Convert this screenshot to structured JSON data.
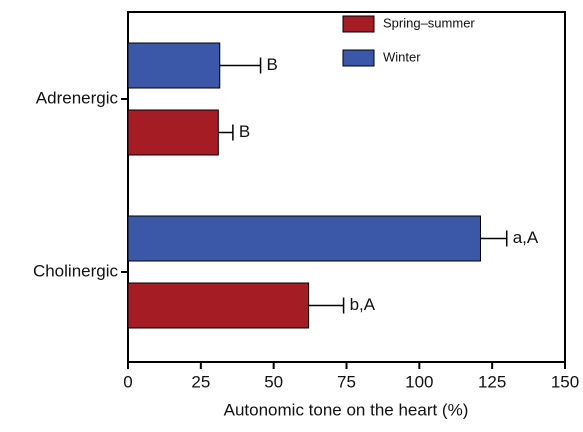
{
  "chart_data": {
    "type": "hbar",
    "xlabel": "Autonomic tone on the heart (%)",
    "categories": [
      "Adrenergic",
      "Cholinergic"
    ],
    "series": [
      {
        "name": "Spring–summer",
        "color": "#a51c24",
        "values": [
          31,
          62
        ],
        "errors": [
          5,
          12
        ],
        "annotations": [
          "B",
          "b,A"
        ]
      },
      {
        "name": "Winter",
        "color": "#3a57a8",
        "values": [
          31.5,
          121
        ],
        "errors": [
          14,
          9
        ],
        "annotations": [
          "B",
          "a,A"
        ]
      }
    ],
    "xlim": [
      0,
      150
    ],
    "xticks": [
      0,
      25,
      50,
      75,
      100,
      125,
      150
    ],
    "legend": "top"
  }
}
